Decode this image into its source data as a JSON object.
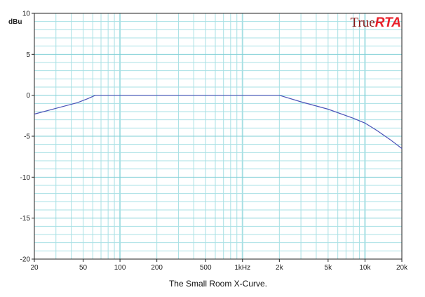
{
  "chart_data": {
    "type": "line",
    "caption": "The Small Room X-Curve.",
    "ylabel": "dBu",
    "xscale": "log",
    "xlim": [
      20,
      20000
    ],
    "ylim": [
      -20,
      10
    ],
    "grid": true,
    "x_ticks": [
      {
        "value": 20,
        "label": "20"
      },
      {
        "value": 50,
        "label": "50"
      },
      {
        "value": 100,
        "label": "100"
      },
      {
        "value": 200,
        "label": "200"
      },
      {
        "value": 500,
        "label": "500"
      },
      {
        "value": 1000,
        "label": "1kHz"
      },
      {
        "value": 2000,
        "label": "2k"
      },
      {
        "value": 5000,
        "label": "5k"
      },
      {
        "value": 10000,
        "label": "10k"
      },
      {
        "value": 20000,
        "label": "20k"
      }
    ],
    "y_ticks": [
      {
        "value": 10,
        "label": "10"
      },
      {
        "value": 5,
        "label": "5"
      },
      {
        "value": 0,
        "label": "0"
      },
      {
        "value": -5,
        "label": "-5"
      },
      {
        "value": -10,
        "label": "-10"
      },
      {
        "value": -15,
        "label": "-15"
      },
      {
        "value": -20,
        "label": "-20"
      }
    ],
    "series": [
      {
        "color": "#4a52b8",
        "x": [
          20,
          30,
          45,
          55,
          63,
          100,
          500,
          1000,
          2000,
          3000,
          5000,
          8000,
          10000,
          12500,
          16000,
          20000
        ],
        "y": [
          -2.3,
          -1.6,
          -0.9,
          -0.4,
          0,
          0,
          0,
          0,
          0,
          -0.8,
          -1.7,
          -2.8,
          -3.4,
          -4.3,
          -5.4,
          -6.5
        ]
      }
    ]
  },
  "logo": {
    "part1": "True",
    "part2": "RTA"
  },
  "colors": {
    "grid": "#a8e0e4",
    "axis": "#222222",
    "line": "#4a52b8"
  }
}
